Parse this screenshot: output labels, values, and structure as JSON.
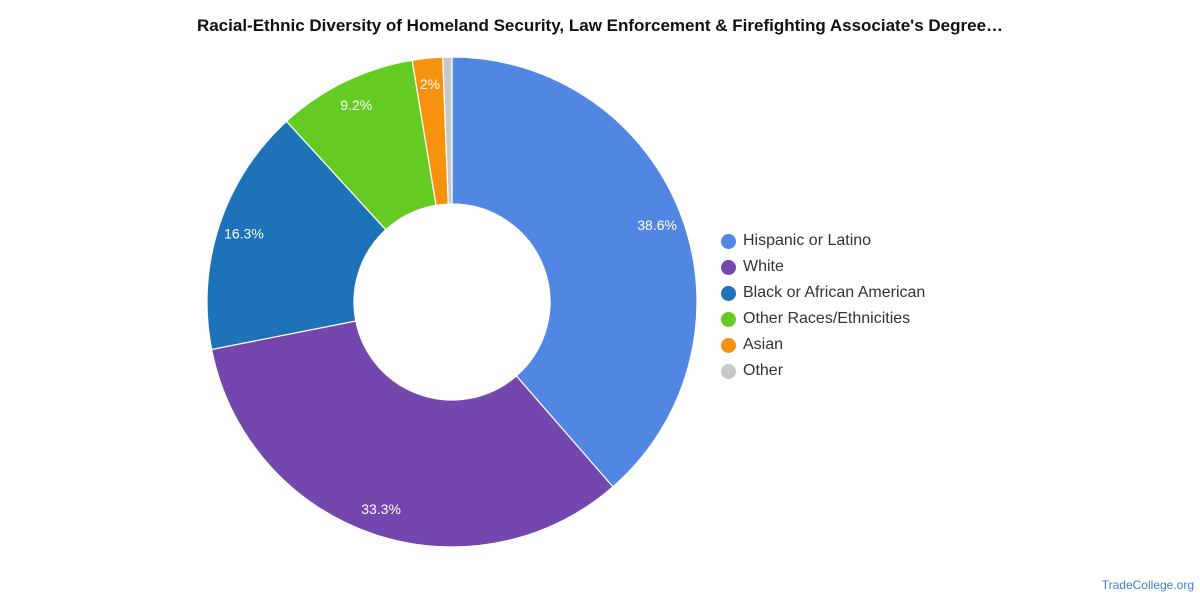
{
  "chart_data": {
    "type": "pie",
    "title": "Racial-Ethnic Diversity of Homeland Security, Law Enforcement & Firefighting Associate's Degree…",
    "slices": [
      {
        "label": "Hispanic or Latino",
        "value": 38.6,
        "display": "38.6%",
        "color": "#5286e3"
      },
      {
        "label": "White",
        "value": 33.3,
        "display": "33.3%",
        "color": "#7347ae"
      },
      {
        "label": "Black or African American",
        "value": 16.3,
        "display": "16.3%",
        "color": "#1e72b8"
      },
      {
        "label": "Other Races/Ethnicities",
        "value": 9.2,
        "display": "9.2%",
        "color": "#63cb22"
      },
      {
        "label": "Asian",
        "value": 2.0,
        "display": "2%",
        "color": "#f7920f"
      },
      {
        "label": "Other",
        "value": 0.6,
        "display": "",
        "color": "#c8c8c8"
      }
    ],
    "legend_position": "right"
  },
  "source": "TradeCollege.org"
}
